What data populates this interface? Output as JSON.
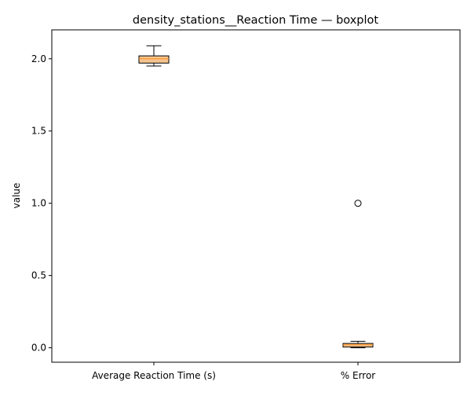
{
  "chart_data": {
    "type": "boxplot",
    "title": "density_stations__Reaction Time — boxplot",
    "xlabel": "",
    "ylabel": "value",
    "ylim": [
      -0.1,
      2.2
    ],
    "yticks": [
      0.0,
      0.5,
      1.0,
      1.5,
      2.0
    ],
    "ytick_labels": [
      "0.0",
      "0.5",
      "1.0",
      "1.5",
      "2.0"
    ],
    "categories": [
      "Average Reaction Time (s)",
      "% Error"
    ],
    "boxes": [
      {
        "category": "Average Reaction Time (s)",
        "whisker_low": 1.95,
        "q1": 1.97,
        "median": 2.0,
        "q3": 2.02,
        "whisker_high": 2.09,
        "outliers": []
      },
      {
        "category": "% Error",
        "whisker_low": 0.0,
        "q1": 0.005,
        "median": 0.02,
        "q3": 0.03,
        "whisker_high": 0.045,
        "outliers": [
          1.0
        ]
      }
    ],
    "grid": false,
    "colors": {
      "box_edge": "#000000",
      "box_fill": "#f5c48f",
      "median": "#ff8c1a",
      "outlier": "#000000"
    }
  }
}
